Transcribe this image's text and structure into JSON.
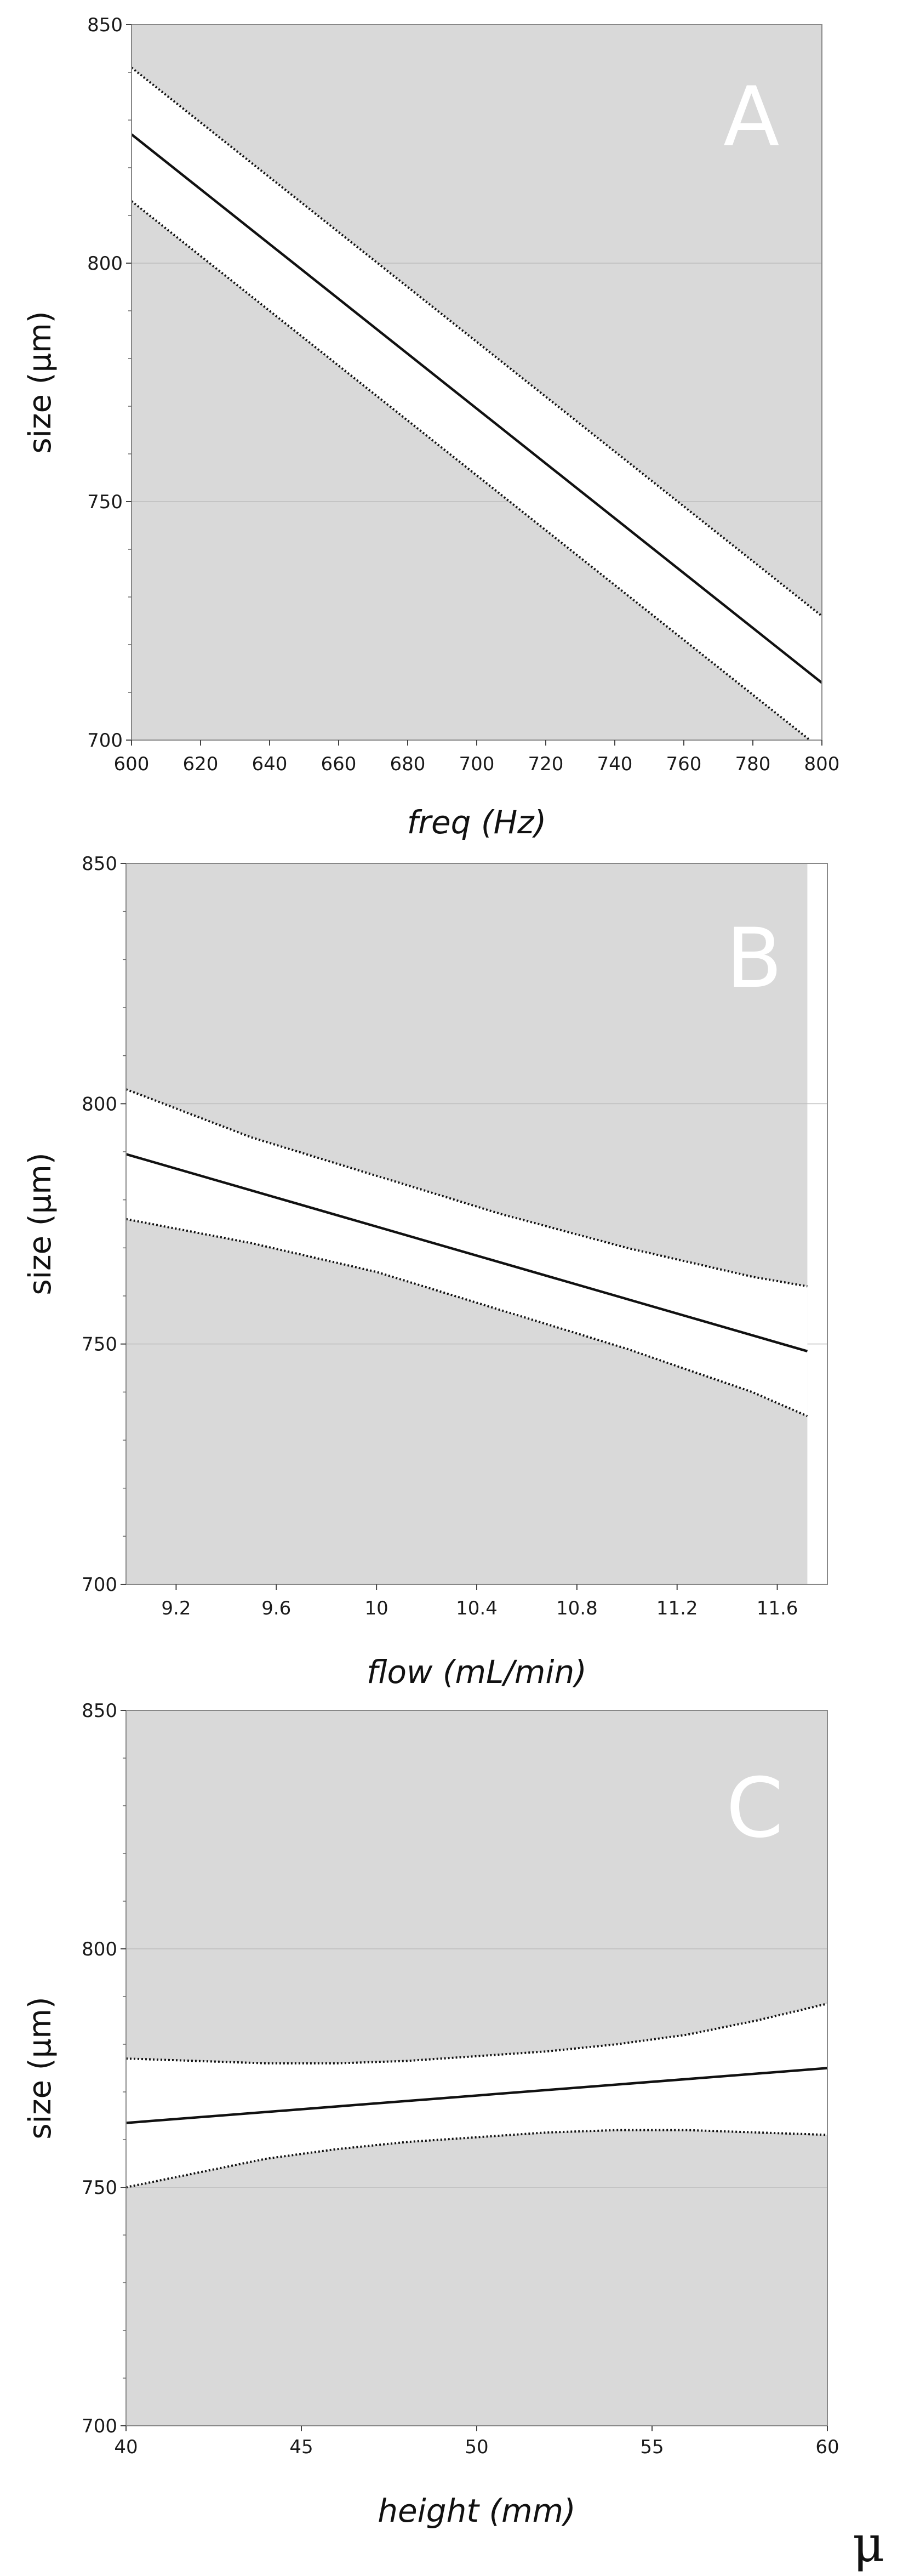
{
  "chart_data": [
    {
      "type": "line",
      "panel_label": "A",
      "xlabel": "freq (Hz)",
      "ylabel": "size (μm)",
      "xlim": [
        600,
        800
      ],
      "ylim": [
        700,
        850
      ],
      "xticks": [
        600,
        620,
        640,
        660,
        680,
        700,
        720,
        740,
        760,
        780,
        800
      ],
      "xtick_labels": [
        "600",
        "620",
        "640",
        "660",
        "680",
        "700",
        "720",
        "740",
        "760",
        "780",
        "800"
      ],
      "yticks": [
        700,
        750,
        800,
        850
      ],
      "ytick_labels": [
        "700",
        "750",
        "800",
        "850"
      ],
      "grid": true,
      "shaded_region_x_end": 800,
      "series": [
        {
          "name": "fit",
          "style": "solid",
          "x": [
            600,
            800
          ],
          "y": [
            827,
            712
          ]
        },
        {
          "name": "upper bound",
          "style": "dotted",
          "x": [
            600,
            800
          ],
          "y": [
            841,
            726
          ]
        },
        {
          "name": "lower bound",
          "style": "dotted",
          "x": [
            600,
            800
          ],
          "y": [
            813,
            698
          ]
        }
      ]
    },
    {
      "type": "line",
      "panel_label": "B",
      "xlabel": "flow (mL/min)",
      "ylabel": "size (μm)",
      "xlim": [
        9,
        11.8
      ],
      "ylim": [
        700,
        850
      ],
      "xticks": [
        9.2,
        9.6,
        10,
        10.4,
        10.8,
        11.2,
        11.6
      ],
      "xtick_labels": [
        "9.2",
        "9.6",
        "10",
        "10.4",
        "10.8",
        "11.2",
        "11.6"
      ],
      "yticks": [
        700,
        750,
        800,
        850
      ],
      "ytick_labels": [
        "700",
        "750",
        "800",
        "850"
      ],
      "grid": true,
      "shaded_region_x_end": 11.72,
      "series": [
        {
          "name": "fit",
          "style": "solid",
          "x": [
            9.0,
            11.72
          ],
          "y": [
            789.5,
            748.5
          ]
        },
        {
          "name": "upper bound",
          "style": "dotted",
          "x": [
            9.0,
            9.5,
            10.0,
            10.5,
            11.0,
            11.5,
            11.72
          ],
          "y": [
            803,
            793,
            785,
            777,
            770,
            764,
            762
          ]
        },
        {
          "name": "lower bound",
          "style": "dotted",
          "x": [
            9.0,
            9.5,
            10.0,
            10.5,
            11.0,
            11.5,
            11.72
          ],
          "y": [
            776,
            771,
            765,
            757,
            749,
            740,
            735
          ]
        }
      ]
    },
    {
      "type": "line",
      "panel_label": "C",
      "xlabel": "height (mm)",
      "ylabel": "size (μm)",
      "xlim": [
        40,
        60
      ],
      "ylim": [
        700,
        850
      ],
      "xticks": [
        40,
        45,
        50,
        55,
        60
      ],
      "xtick_labels": [
        "40",
        "45",
        "50",
        "55",
        "60"
      ],
      "yticks": [
        700,
        750,
        800,
        850
      ],
      "ytick_labels": [
        "700",
        "750",
        "800",
        "850"
      ],
      "grid": true,
      "shaded_region_x_end": 60,
      "series": [
        {
          "name": "fit",
          "style": "solid",
          "x": [
            40,
            60
          ],
          "y": [
            763.5,
            775
          ]
        },
        {
          "name": "upper bound",
          "style": "dotted",
          "x": [
            40,
            42,
            44,
            46,
            48,
            50,
            52,
            54,
            56,
            58,
            60
          ],
          "y": [
            777,
            776.5,
            776,
            776,
            776.5,
            777.5,
            778.5,
            780,
            782,
            785,
            788.5
          ]
        },
        {
          "name": "lower bound",
          "style": "dotted",
          "x": [
            40,
            42,
            44,
            46,
            48,
            50,
            52,
            54,
            56,
            58,
            60
          ],
          "y": [
            750,
            753,
            756,
            758,
            759.5,
            760.5,
            761.5,
            762,
            762,
            761.5,
            761
          ]
        }
      ]
    }
  ],
  "colors": {
    "shade": "#d9d9d9",
    "band": "#ffffff",
    "line": "#111111",
    "frame": "#888888",
    "grid": "#bdbdbd",
    "letter": "#ffffff"
  },
  "corner_mark": "μ"
}
